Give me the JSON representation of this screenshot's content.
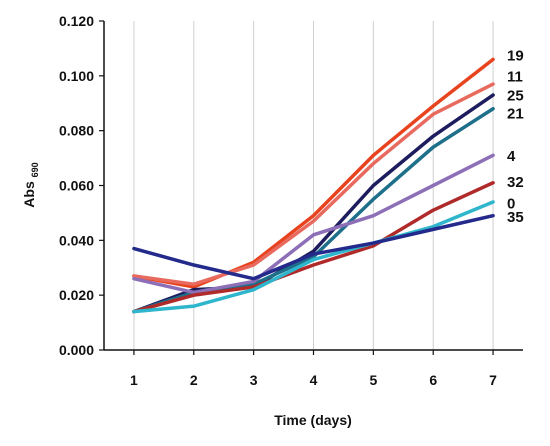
{
  "chart_data": {
    "type": "line",
    "title": "",
    "xlabel": "Time (days)",
    "ylabel": "Abs",
    "ylabel_subscript": "690",
    "x": [
      1,
      2,
      3,
      4,
      5,
      6,
      7
    ],
    "x_tick_labels": [
      "1",
      "2",
      "3",
      "4",
      "5",
      "6",
      "7"
    ],
    "y_tick_labels": [
      "0.000",
      "0.020",
      "0.040",
      "0.060",
      "0.080",
      "0.100",
      "0.120"
    ],
    "xlim": [
      0.5,
      7.5
    ],
    "ylim": [
      0,
      0.12
    ],
    "grid": "vertical",
    "series": [
      {
        "name": "19",
        "color": "#e8431f",
        "values": [
          0.027,
          0.023,
          0.032,
          0.049,
          0.071,
          0.089,
          0.106
        ]
      },
      {
        "name": "11",
        "color": "#e86a5f",
        "values": [
          0.027,
          0.024,
          0.031,
          0.047,
          0.068,
          0.086,
          0.097
        ]
      },
      {
        "name": "25",
        "color": "#1c1c5e",
        "values": [
          0.014,
          0.022,
          0.023,
          0.036,
          0.06,
          0.078,
          0.093
        ]
      },
      {
        "name": "21",
        "color": "#1d6f8a",
        "values": [
          0.014,
          0.021,
          0.024,
          0.034,
          0.055,
          0.074,
          0.088
        ]
      },
      {
        "name": "4",
        "color": "#8d6fb8",
        "values": [
          0.026,
          0.021,
          0.025,
          0.042,
          0.049,
          0.06,
          0.071
        ]
      },
      {
        "name": "32",
        "color": "#b02a2a",
        "values": [
          0.014,
          0.02,
          0.023,
          0.031,
          0.038,
          0.051,
          0.061
        ]
      },
      {
        "name": "0",
        "color": "#2fb6cc",
        "values": [
          0.014,
          0.016,
          0.022,
          0.033,
          0.039,
          0.045,
          0.054
        ]
      },
      {
        "name": "35",
        "color": "#232a8c",
        "values": [
          0.037,
          0.031,
          0.026,
          0.035,
          0.039,
          0.044,
          0.049
        ]
      }
    ],
    "series_labels": [
      {
        "text": "19",
        "y": 0.1075
      },
      {
        "text": "11",
        "y": 0.0998
      },
      {
        "text": "25",
        "y": 0.0928
      },
      {
        "text": "21",
        "y": 0.0862
      },
      {
        "text": "4",
        "y": 0.0708
      },
      {
        "text": "32",
        "y": 0.0612
      },
      {
        "text": "0",
        "y": 0.0535
      },
      {
        "text": "35",
        "y": 0.0485
      }
    ],
    "colors": {
      "axis": "#111111",
      "gridline": "#cfcfcf",
      "text": "#111111"
    }
  }
}
